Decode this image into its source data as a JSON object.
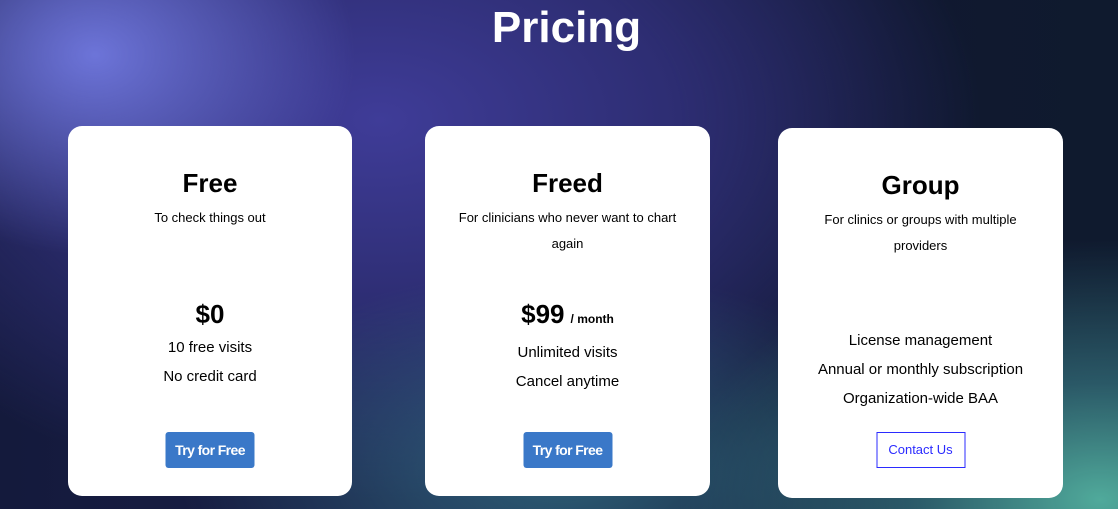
{
  "page": {
    "title": "Pricing"
  },
  "plans": [
    {
      "name": "Free",
      "description": "To check things out",
      "price": "$0",
      "period": "",
      "features": [
        "10 free visits",
        "No credit card"
      ],
      "cta": "Try for Free"
    },
    {
      "name": "Freed",
      "description": "For clinicians who never want to chart again",
      "price": "$99",
      "period": "/ month",
      "features": [
        "Unlimited visits",
        "Cancel anytime"
      ],
      "cta": "Try for Free"
    },
    {
      "name": "Group",
      "description": "For clinics or groups with multiple providers",
      "price": "",
      "period": "",
      "features": [
        "License management",
        "Annual or monthly subscription",
        "Organization-wide BAA"
      ],
      "cta": "Contact Us"
    }
  ],
  "colors": {
    "button": "#3a78c8",
    "contact_border": "#2b2bff"
  }
}
